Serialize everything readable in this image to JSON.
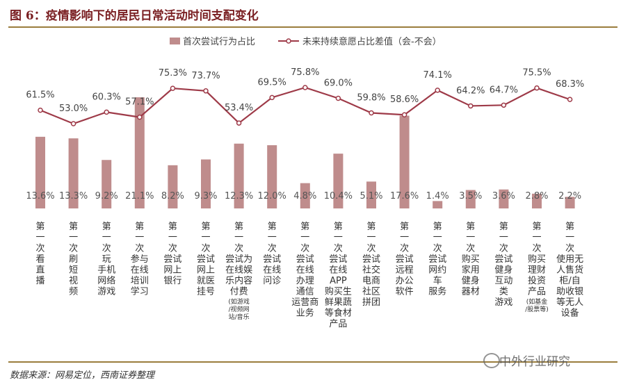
{
  "figure": {
    "title": "图 6：疫情影响下的居民日常活动时间支配变化",
    "source": "数据来源：网易定位，西南证券整理",
    "watermark": "中外行业研究"
  },
  "colors": {
    "bar": "#bf8c8c",
    "line": "#9e3a48",
    "title": "#7a1f22",
    "rule": "#9a7d3c"
  },
  "chart_data": {
    "type": "bar",
    "categories": [
      "第一次看直播",
      "第一次刷短视频",
      "第一次玩手机网络游戏",
      "第一次参与在线培训学习",
      "第一次尝试网上银行",
      "第一次尝试网上就医挂号",
      "第一次尝试为在线娱乐内容付费",
      "第一次尝试在线问诊",
      "第一次尝试在线办理通信运营商业务",
      "第一次尝试在线APP购买生鲜果蔬等食材",
      "第一次尝试社交电商社区拼团",
      "第一次尝试远程办公软件",
      "第一次尝试网约车服务",
      "第一次购买家用健身器材",
      "第一次尝试健身互动类游戏",
      "第一次购买理财投资产品",
      "第一次使用无人售货柜/自助收银等无人设备"
    ],
    "category_labels": [
      {
        "main": "第\n一\n次\n看\n直\n播",
        "note": ""
      },
      {
        "main": "第\n一\n次\n刷\n短\n视\n频",
        "note": ""
      },
      {
        "main": "第\n一\n次\n玩\n手机\n网络\n游戏",
        "note": ""
      },
      {
        "main": "第\n一\n次\n参与\n在线\n培训\n学习",
        "note": ""
      },
      {
        "main": "第\n一\n次\n尝试\n网上\n银行",
        "note": ""
      },
      {
        "main": "第\n一\n次\n尝试\n网上\n就医\n挂号",
        "note": ""
      },
      {
        "main": "第\n一\n次\n尝试为\n在线娱\n乐内容\n付费",
        "note": "(如游戏\n/视频网\n站/音乐"
      },
      {
        "main": "第\n一\n次\n尝试\n在线\n问诊",
        "note": ""
      },
      {
        "main": "第\n一\n次\n尝试\n在线\n办理\n通信\n运营商\n业务",
        "note": ""
      },
      {
        "main": "第\n一\n次\n尝试\n在线\nAPP\n购买生\n鲜果蔬\n等食材\n产品",
        "note": ""
      },
      {
        "main": "第\n一\n次\n尝试\n社交\n电商\n社区\n拼团",
        "note": ""
      },
      {
        "main": "第\n一\n次\n尝试\n远程\n办公\n软件",
        "note": ""
      },
      {
        "main": "第\n一\n次\n尝试\n网约\n车\n服务",
        "note": ""
      },
      {
        "main": "第\n一\n次\n购买\n家用\n健身\n器材",
        "note": ""
      },
      {
        "main": "第\n一\n次\n尝试\n健身\n互动\n类\n游戏",
        "note": ""
      },
      {
        "main": "第\n一\n次\n购买\n理财\n投资\n产品",
        "note": "(如基金\n/股票等)"
      },
      {
        "main": "第\n一\n次\n使用无\n人售货\n柜/自\n助收银\n等无人\n设备",
        "note": ""
      }
    ],
    "series": [
      {
        "name": "首次尝试行为占比",
        "type": "bar",
        "values": [
          13.6,
          13.3,
          9.2,
          21.1,
          8.2,
          9.3,
          12.3,
          12.0,
          4.8,
          10.4,
          5.1,
          17.6,
          1.4,
          3.5,
          3.6,
          2.8,
          2.2
        ],
        "labels": [
          "13.6%",
          "13.3%",
          "9.2%",
          "21.1%",
          "8.2%",
          "9.3%",
          "12.3%",
          "12.0%",
          "4.8%",
          "10.4%",
          "5.1%",
          "17.6%",
          "1.4%",
          "3.5%",
          "3.6%",
          "2.8%",
          "2.2%"
        ]
      },
      {
        "name": "未来持续意愿占比差值（会-不会）",
        "type": "line",
        "values": [
          61.5,
          53.0,
          60.3,
          57.1,
          75.3,
          73.7,
          53.4,
          69.5,
          75.8,
          69.0,
          59.8,
          58.6,
          74.1,
          64.2,
          64.7,
          75.5,
          68.3
        ],
        "labels": [
          "61.5%",
          "53.0%",
          "60.3%",
          "57.1%",
          "75.3%",
          "73.7%",
          "53.4%",
          "69.5%",
          "75.8%",
          "69.0%",
          "59.8%",
          "58.6%",
          "74.1%",
          "64.2%",
          "64.7%",
          "75.5%",
          "68.3%"
        ]
      }
    ],
    "bar_ylim": [
      0,
      25
    ],
    "line_ylim": [
      0,
      100
    ],
    "grid": false,
    "legend_position": "top"
  }
}
